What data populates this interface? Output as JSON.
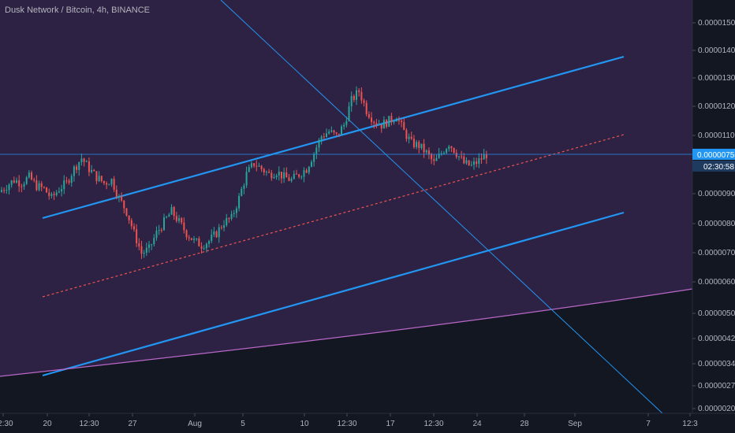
{
  "chart_data": {
    "type": "candlestick",
    "title": "Dusk Network / Bitcoin, 4h, BINANCE",
    "y_axis": {
      "scale": "log",
      "ticks": [
        "0.00001500",
        "0.00001400",
        "0.00001300",
        "0.00001200",
        "0.00001100",
        "0.00001000",
        "0.00000900",
        "0.00000800",
        "0.00000700",
        "0.00000600",
        "0.00000500",
        "0.00000420",
        "0.00000340",
        "0.00000270",
        "0.00000200"
      ],
      "range": [
        1.95e-06,
        1.6e-05
      ]
    },
    "x_axis": {
      "ticks": [
        "12:30",
        "20",
        "12:30",
        "27",
        "Aug",
        "5",
        "10",
        "12:30",
        "17",
        "12:30",
        "24",
        "28",
        "Sep",
        "7",
        "12:3"
      ]
    },
    "last_price": {
      "value": "0.00000755",
      "countdown": "02:30:58"
    },
    "price_path": [
      6.2e-06,
      6.4e-06,
      6.6e-06,
      6.5e-06,
      6.7e-06,
      6.4e-06,
      6.3e-06,
      6e-06,
      6.3e-06,
      6.5e-06,
      7e-06,
      7.4e-06,
      7e-06,
      6.7e-06,
      6.5e-06,
      6.6e-06,
      6e-06,
      5.6e-06,
      5e-06,
      4.5e-06,
      4.6e-06,
      5e-06,
      5.3e-06,
      5.6e-06,
      5.3e-06,
      5e-06,
      4.8e-06,
      4.7e-06,
      4.8e-06,
      5e-06,
      5.3e-06,
      5.4e-06,
      6e-06,
      6.8e-06,
      7.2e-06,
      7e-06,
      6.8e-06,
      6.9e-06,
      6.7e-06,
      6.6e-06,
      6.8e-06,
      7e-06,
      7.6e-06,
      8.3e-06,
      8.5e-06,
      8.3e-06,
      8.8e-06,
      1e-05,
      1.05e-05,
      9.5e-06,
      9e-06,
      8.8e-06,
      9e-06,
      9.2e-06,
      8.5e-06,
      8e-06,
      7.9e-06,
      7.6e-06,
      7.2e-06,
      7.6e-06,
      8e-06,
      7.6e-06,
      7.2e-06,
      7.1e-06,
      7.3e-06,
      7.55e-06
    ],
    "channel_lines": {
      "upper_color": "#2196f3",
      "lower_color": "#2196f3",
      "median_color": "#ef5350",
      "support_curve_color": "#ba68c8",
      "trendline_color": "#2196f3"
    },
    "colors": {
      "up": "#26a69a",
      "down": "#ef5350",
      "background": "#131722",
      "zone_fill": "#2e2244"
    }
  }
}
